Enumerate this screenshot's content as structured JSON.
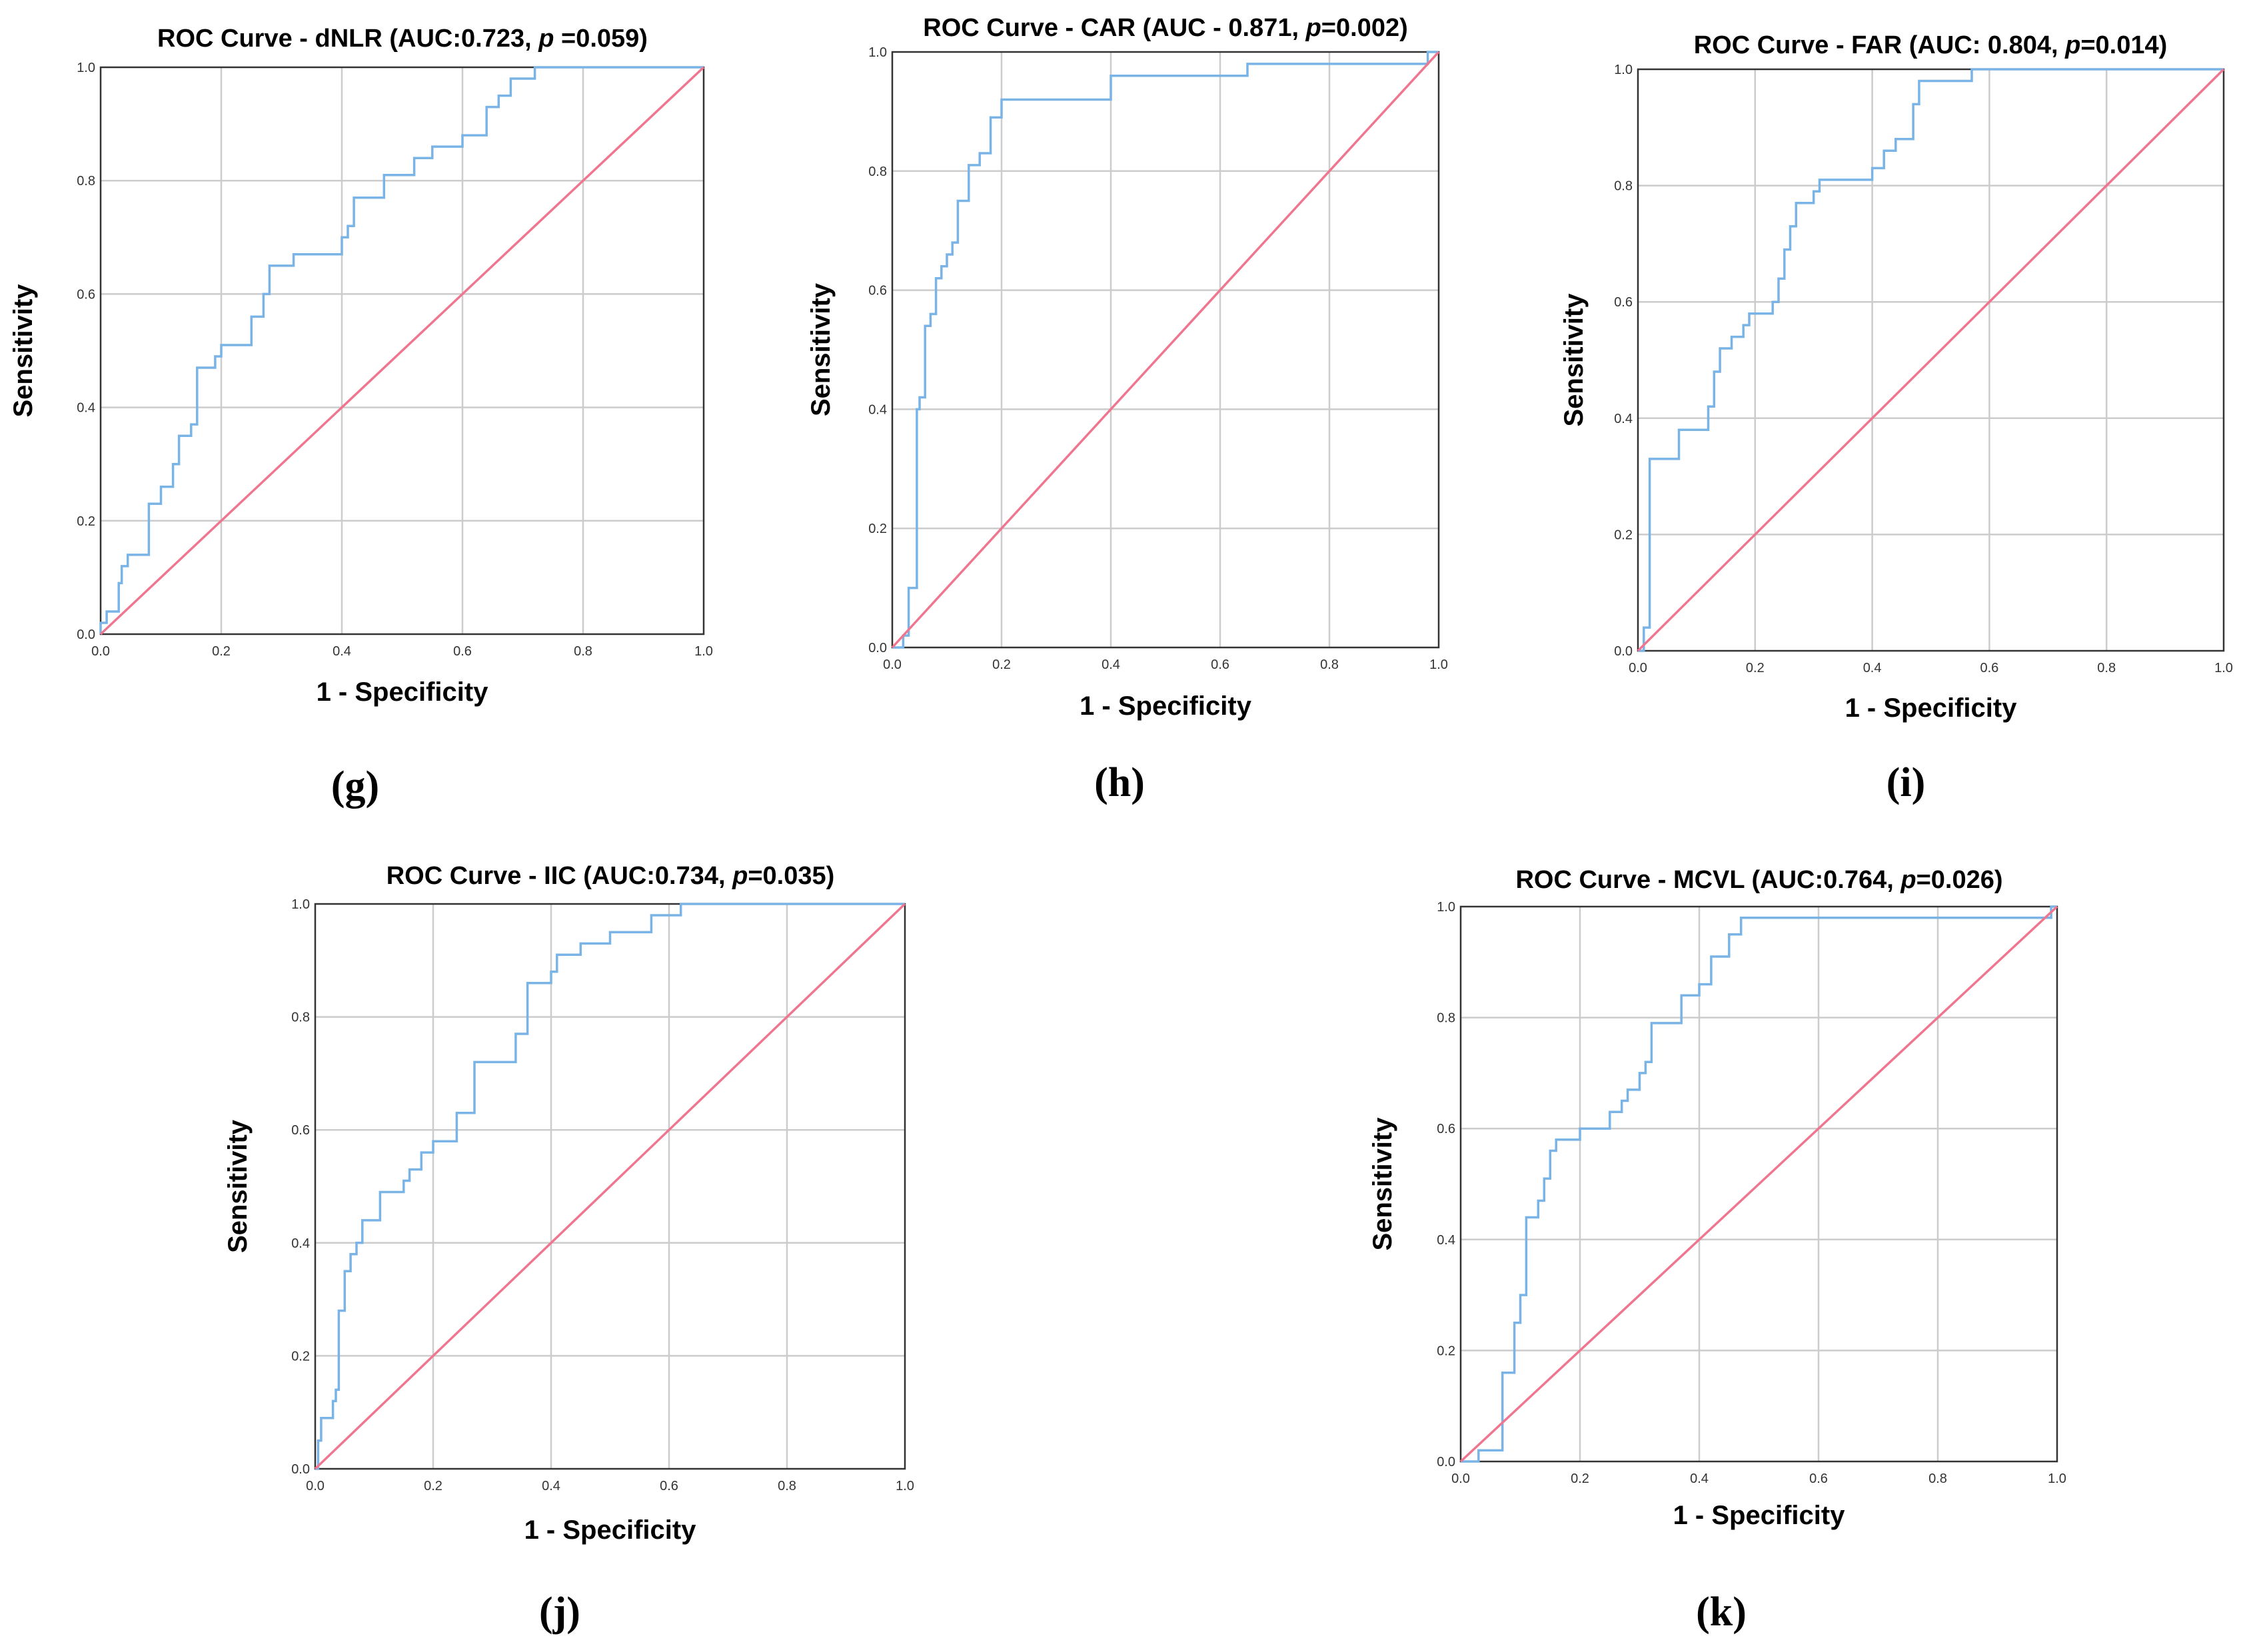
{
  "colors": {
    "roc_curve": "#7ab4e6",
    "reference_line": "#f0758f",
    "grid": "#cccccc",
    "frame": "#333333",
    "background": "#ffffff"
  },
  "chart_data": [
    {
      "panel": "(g)",
      "type": "line",
      "title_prefix": "ROC Curve - dNLR (AUC:0.723, ",
      "title_p": "p",
      "title_suffix": " =0.059)",
      "xlabel": "1 - Specificity",
      "ylabel": "Sensitivity",
      "xlim": [
        0,
        1
      ],
      "ylim": [
        0,
        1
      ],
      "grid": true,
      "x_ticks": [
        "0.0",
        "0.2",
        "0.4",
        "0.6",
        "0.8",
        "1.0"
      ],
      "y_ticks": [
        "0.0",
        "0.2",
        "0.4",
        "0.6",
        "0.8",
        "1.0"
      ],
      "auc": 0.723,
      "p_value": 0.059,
      "series": [
        {
          "name": "roc",
          "x": [
            0,
            0,
            0.01,
            0.01,
            0.03,
            0.03,
            0.035,
            0.035,
            0.045,
            0.045,
            0.08,
            0.08,
            0.1,
            0.1,
            0.12,
            0.12,
            0.13,
            0.13,
            0.15,
            0.15,
            0.16,
            0.16,
            0.19,
            0.19,
            0.2,
            0.2,
            0.25,
            0.25,
            0.27,
            0.27,
            0.28,
            0.28,
            0.32,
            0.32,
            0.4,
            0.4,
            0.41,
            0.41,
            0.42,
            0.42,
            0.47,
            0.47,
            0.52,
            0.52,
            0.55,
            0.55,
            0.6,
            0.6,
            0.64,
            0.64,
            0.66,
            0.66,
            0.68,
            0.68,
            0.72,
            0.72,
            0.79,
            0.79,
            1
          ],
          "y": [
            0,
            0.02,
            0.02,
            0.04,
            0.04,
            0.09,
            0.09,
            0.12,
            0.12,
            0.14,
            0.14,
            0.23,
            0.23,
            0.26,
            0.26,
            0.3,
            0.3,
            0.35,
            0.35,
            0.37,
            0.37,
            0.47,
            0.47,
            0.49,
            0.49,
            0.51,
            0.51,
            0.56,
            0.56,
            0.6,
            0.6,
            0.65,
            0.65,
            0.67,
            0.67,
            0.7,
            0.7,
            0.72,
            0.72,
            0.77,
            0.77,
            0.81,
            0.81,
            0.84,
            0.84,
            0.86,
            0.86,
            0.88,
            0.88,
            0.93,
            0.93,
            0.95,
            0.95,
            0.98,
            0.98,
            1,
            1,
            1,
            1
          ]
        },
        {
          "name": "reference",
          "x": [
            0,
            1
          ],
          "y": [
            0,
            1
          ]
        }
      ]
    },
    {
      "panel": "(h)",
      "type": "line",
      "title_prefix": "ROC Curve - CAR (AUC - 0.871, ",
      "title_p": "p",
      "title_suffix": "=0.002)",
      "xlabel": "1 - Specificity",
      "ylabel": "Sensitivity",
      "xlim": [
        0,
        1
      ],
      "ylim": [
        0,
        1
      ],
      "grid": true,
      "x_ticks": [
        "0.0",
        "0.2",
        "0.4",
        "0.6",
        "0.8",
        "1.0"
      ],
      "y_ticks": [
        "0.0",
        "0.2",
        "0.4",
        "0.6",
        "0.8",
        "1.0"
      ],
      "auc": 0.871,
      "p_value": 0.002,
      "series": [
        {
          "name": "roc",
          "x": [
            0,
            0.02,
            0.02,
            0.03,
            0.03,
            0.045,
            0.045,
            0.05,
            0.05,
            0.06,
            0.06,
            0.07,
            0.07,
            0.08,
            0.08,
            0.09,
            0.09,
            0.1,
            0.1,
            0.11,
            0.11,
            0.12,
            0.12,
            0.14,
            0.14,
            0.16,
            0.16,
            0.18,
            0.18,
            0.2,
            0.2,
            0.4,
            0.4,
            0.65,
            0.65,
            0.98,
            0.98,
            1
          ],
          "y": [
            0,
            0,
            0.02,
            0.02,
            0.1,
            0.1,
            0.4,
            0.4,
            0.42,
            0.42,
            0.54,
            0.54,
            0.56,
            0.56,
            0.62,
            0.62,
            0.64,
            0.64,
            0.66,
            0.66,
            0.68,
            0.68,
            0.75,
            0.75,
            0.81,
            0.81,
            0.83,
            0.83,
            0.89,
            0.89,
            0.92,
            0.92,
            0.96,
            0.96,
            0.98,
            0.98,
            1,
            1
          ]
        },
        {
          "name": "reference",
          "x": [
            0,
            1
          ],
          "y": [
            0,
            1
          ]
        }
      ]
    },
    {
      "panel": "(i)",
      "type": "line",
      "title_prefix": "ROC Curve - FAR (AUC: 0.804, ",
      "title_p": "p",
      "title_suffix": "=0.014)",
      "xlabel": "1 - Specificity",
      "ylabel": "Sensitivity",
      "xlim": [
        0,
        1
      ],
      "ylim": [
        0,
        1
      ],
      "grid": true,
      "x_ticks": [
        "0.0",
        "0.2",
        "0.4",
        "0.6",
        "0.8",
        "1.0"
      ],
      "y_ticks": [
        "0.0",
        "0.2",
        "0.4",
        "0.6",
        "0.8",
        "1.0"
      ],
      "auc": 0.804,
      "p_value": 0.014,
      "series": [
        {
          "name": "roc",
          "x": [
            0,
            0.01,
            0.01,
            0.02,
            0.02,
            0.07,
            0.07,
            0.12,
            0.12,
            0.13,
            0.13,
            0.14,
            0.14,
            0.16,
            0.16,
            0.18,
            0.18,
            0.19,
            0.19,
            0.23,
            0.23,
            0.24,
            0.24,
            0.25,
            0.25,
            0.26,
            0.26,
            0.27,
            0.27,
            0.3,
            0.3,
            0.31,
            0.31,
            0.4,
            0.4,
            0.42,
            0.42,
            0.44,
            0.44,
            0.47,
            0.47,
            0.48,
            0.48,
            0.57,
            0.57,
            1
          ],
          "y": [
            0,
            0,
            0.04,
            0.04,
            0.33,
            0.33,
            0.38,
            0.38,
            0.42,
            0.42,
            0.48,
            0.48,
            0.52,
            0.52,
            0.54,
            0.54,
            0.56,
            0.56,
            0.58,
            0.58,
            0.6,
            0.6,
            0.64,
            0.64,
            0.69,
            0.69,
            0.73,
            0.73,
            0.77,
            0.77,
            0.79,
            0.79,
            0.81,
            0.81,
            0.83,
            0.83,
            0.86,
            0.86,
            0.88,
            0.88,
            0.94,
            0.94,
            0.98,
            0.98,
            1,
            1
          ]
        },
        {
          "name": "reference",
          "x": [
            0,
            1
          ],
          "y": [
            0,
            1
          ]
        }
      ]
    },
    {
      "panel": "(j)",
      "type": "line",
      "title_prefix": "ROC Curve - IIC (AUC:0.734, ",
      "title_p": "p",
      "title_suffix": "=0.035)",
      "xlabel": "1 - Specificity",
      "ylabel": "Sensitivity",
      "xlim": [
        0,
        1
      ],
      "ylim": [
        0,
        1
      ],
      "grid": true,
      "x_ticks": [
        "0.0",
        "0.2",
        "0.4",
        "0.6",
        "0.8",
        "1.0"
      ],
      "y_ticks": [
        "0.0",
        "0.2",
        "0.4",
        "0.6",
        "0.8",
        "1.0"
      ],
      "auc": 0.734,
      "p_value": 0.035,
      "series": [
        {
          "name": "roc",
          "x": [
            0,
            0.005,
            0.005,
            0.01,
            0.01,
            0.03,
            0.03,
            0.035,
            0.035,
            0.04,
            0.04,
            0.05,
            0.05,
            0.06,
            0.06,
            0.07,
            0.07,
            0.08,
            0.08,
            0.11,
            0.11,
            0.15,
            0.15,
            0.16,
            0.16,
            0.18,
            0.18,
            0.2,
            0.2,
            0.24,
            0.24,
            0.27,
            0.27,
            0.34,
            0.34,
            0.36,
            0.36,
            0.4,
            0.4,
            0.41,
            0.41,
            0.45,
            0.45,
            0.5,
            0.5,
            0.57,
            0.57,
            0.62,
            0.62,
            0.64,
            0.64,
            1
          ],
          "y": [
            0,
            0,
            0.05,
            0.05,
            0.09,
            0.09,
            0.12,
            0.12,
            0.14,
            0.14,
            0.28,
            0.28,
            0.35,
            0.35,
            0.38,
            0.38,
            0.4,
            0.4,
            0.44,
            0.44,
            0.49,
            0.49,
            0.51,
            0.51,
            0.53,
            0.53,
            0.56,
            0.56,
            0.58,
            0.58,
            0.63,
            0.63,
            0.72,
            0.72,
            0.77,
            0.77,
            0.86,
            0.86,
            0.88,
            0.88,
            0.91,
            0.91,
            0.93,
            0.93,
            0.95,
            0.95,
            0.98,
            0.98,
            1,
            1,
            1,
            1
          ]
        },
        {
          "name": "reference",
          "x": [
            0,
            1
          ],
          "y": [
            0,
            1
          ]
        }
      ]
    },
    {
      "panel": "(k)",
      "type": "line",
      "title_prefix": "ROC Curve - MCVL (AUC:0.764, ",
      "title_p": "p",
      "title_suffix": "=0.026)",
      "xlabel": "1 - Specificity",
      "ylabel": "Sensitivity",
      "xlim": [
        0,
        1
      ],
      "ylim": [
        0,
        1
      ],
      "grid": true,
      "x_ticks": [
        "0.0",
        "0.2",
        "0.4",
        "0.6",
        "0.8",
        "1.0"
      ],
      "y_ticks": [
        "0.0",
        "0.2",
        "0.4",
        "0.6",
        "0.8",
        "1.0"
      ],
      "auc": 0.764,
      "p_value": 0.026,
      "series": [
        {
          "name": "roc",
          "x": [
            0,
            0.03,
            0.03,
            0.07,
            0.07,
            0.09,
            0.09,
            0.1,
            0.1,
            0.11,
            0.11,
            0.13,
            0.13,
            0.14,
            0.14,
            0.15,
            0.15,
            0.16,
            0.16,
            0.2,
            0.2,
            0.25,
            0.25,
            0.27,
            0.27,
            0.28,
            0.28,
            0.3,
            0.3,
            0.31,
            0.31,
            0.32,
            0.32,
            0.37,
            0.37,
            0.4,
            0.4,
            0.42,
            0.42,
            0.45,
            0.45,
            0.47,
            0.47,
            0.49,
            0.49,
            0.57,
            0.57,
            0.99,
            0.99,
            1
          ],
          "y": [
            0,
            0,
            0.02,
            0.02,
            0.16,
            0.16,
            0.25,
            0.25,
            0.3,
            0.3,
            0.44,
            0.44,
            0.47,
            0.47,
            0.51,
            0.51,
            0.56,
            0.56,
            0.58,
            0.58,
            0.6,
            0.6,
            0.63,
            0.63,
            0.65,
            0.65,
            0.67,
            0.67,
            0.7,
            0.7,
            0.72,
            0.72,
            0.79,
            0.79,
            0.84,
            0.84,
            0.86,
            0.86,
            0.91,
            0.91,
            0.95,
            0.95,
            0.98,
            0.98,
            0.98,
            0.98,
            0.98,
            0.98,
            1,
            1
          ]
        },
        {
          "name": "reference",
          "x": [
            0,
            1
          ],
          "y": [
            0,
            1
          ]
        }
      ]
    }
  ]
}
